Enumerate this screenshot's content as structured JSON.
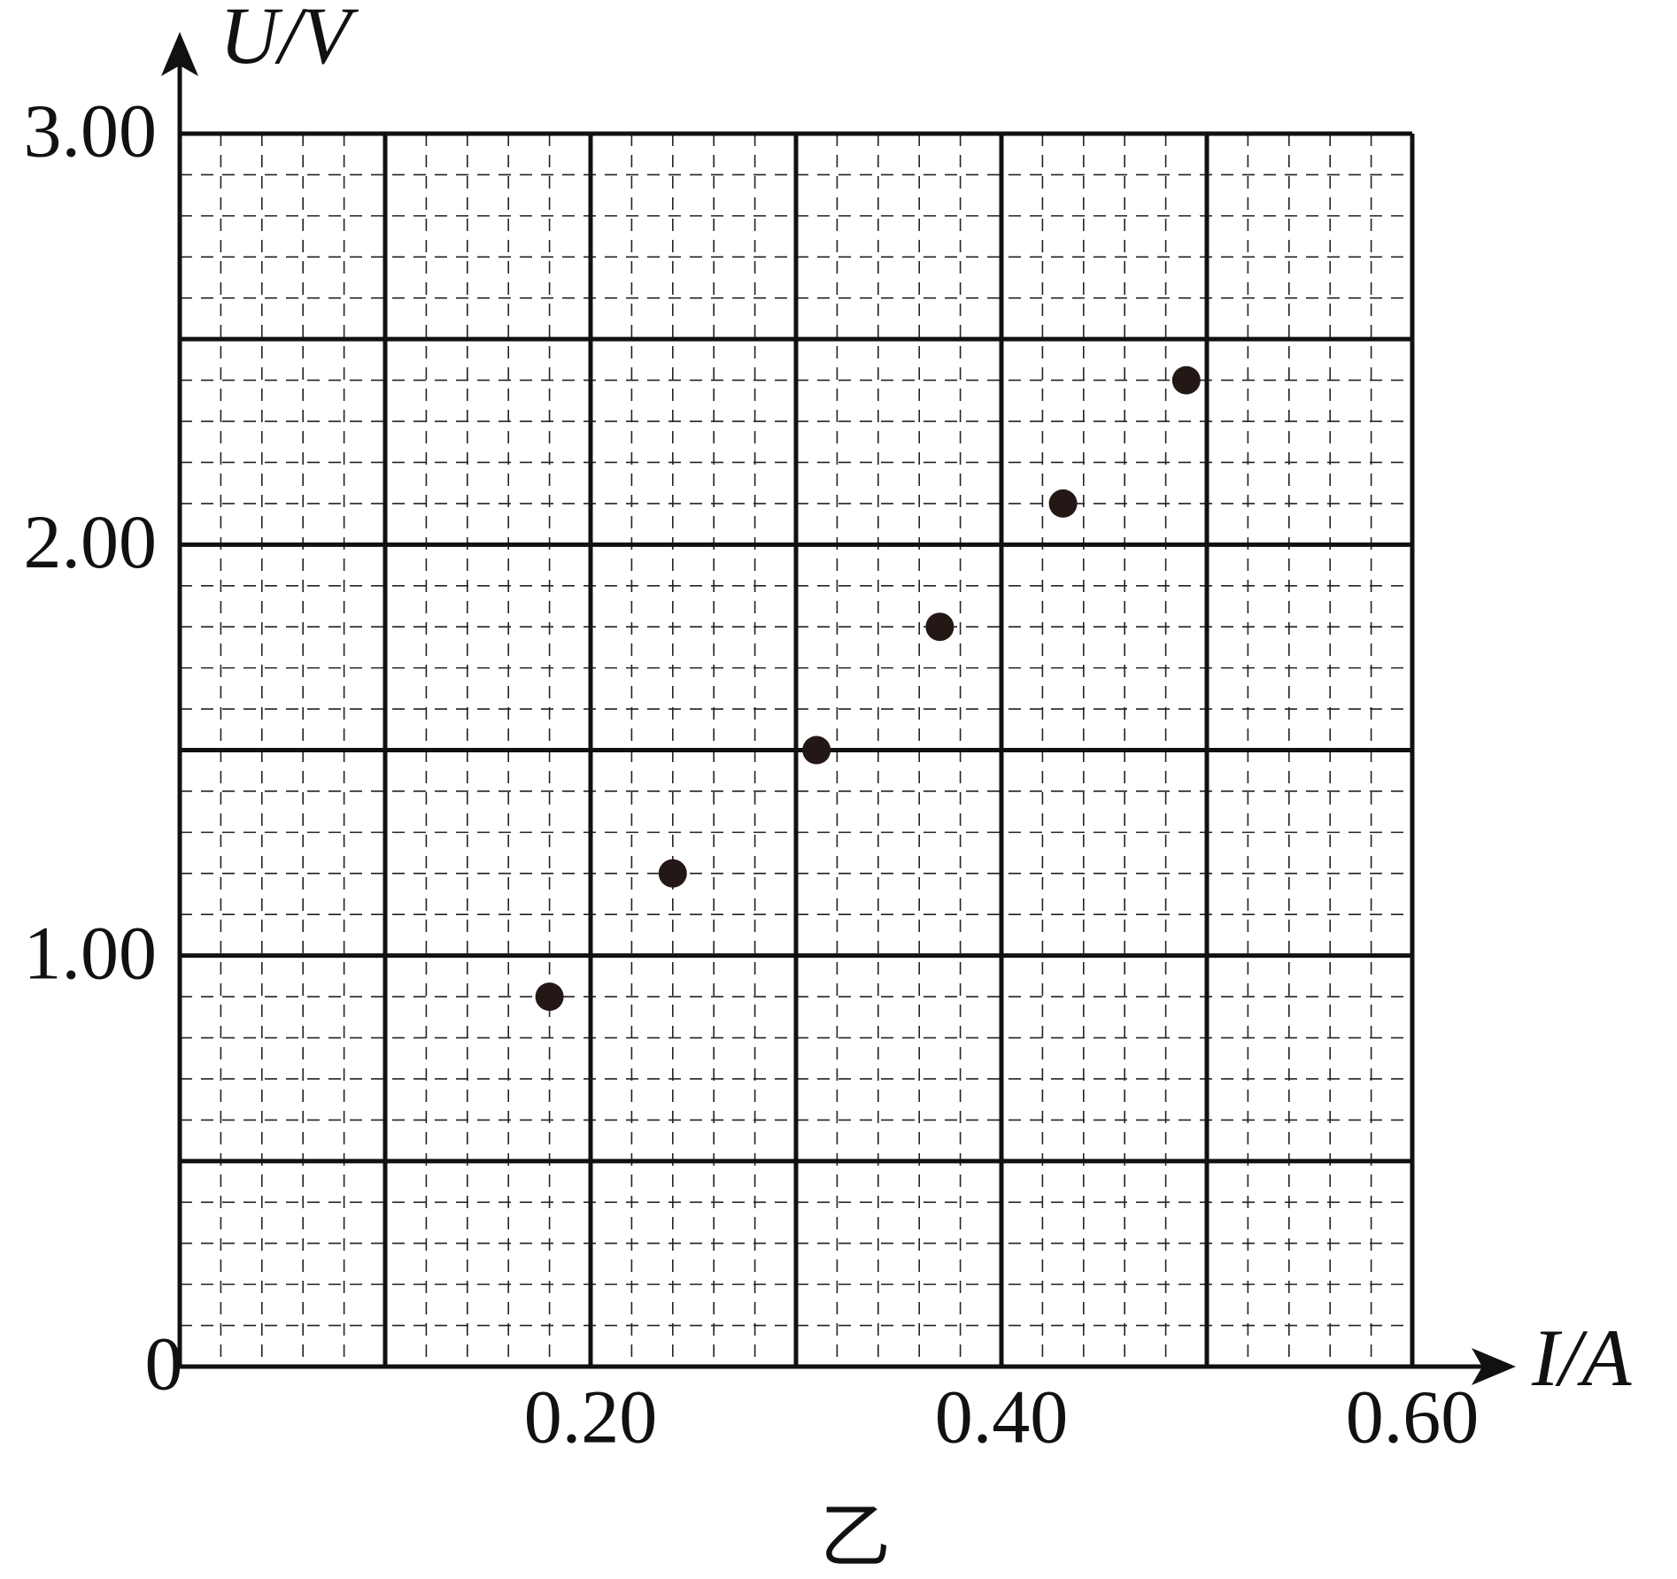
{
  "chart_data": {
    "type": "scatter",
    "xlabel": "I/A",
    "ylabel": "U/V",
    "caption": "乙",
    "origin_label": "0",
    "x": [
      0.18,
      0.24,
      0.31,
      0.37,
      0.43,
      0.49
    ],
    "values": [
      0.9,
      1.2,
      1.5,
      1.8,
      2.1,
      2.4
    ],
    "color": "#231815",
    "xlim": [
      0,
      0.6
    ],
    "ylim": [
      0,
      3
    ],
    "xticks": [
      {
        "value": 0.2,
        "label": "0.20"
      },
      {
        "value": 0.4,
        "label": "0.40"
      },
      {
        "value": 0.6,
        "label": "0.60"
      }
    ],
    "yticks": [
      {
        "value": 1,
        "label": "1.00"
      },
      {
        "value": 2,
        "label": "2.00"
      },
      {
        "value": 3,
        "label": "3.00"
      }
    ],
    "xgrid": [
      0,
      0.1,
      0.2,
      0.3,
      0.4,
      0.5,
      0.6
    ],
    "ygrid": [
      0,
      0.5,
      1,
      1.5,
      2,
      2.5,
      3
    ],
    "grid": true
  }
}
